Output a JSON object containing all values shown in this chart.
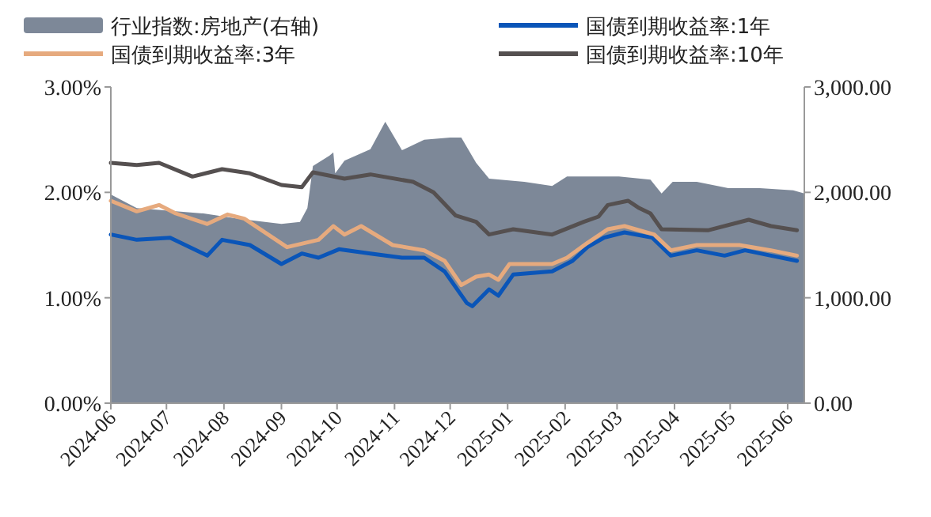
{
  "chart_data": {
    "type": "line",
    "legend": "top",
    "xlim": [
      "2024-06-01",
      "2025-06-10"
    ],
    "xticks": [
      "2024-06",
      "2024-07",
      "2024-08",
      "2024-09",
      "2024-10",
      "2024-11",
      "2024-12",
      "2025-01",
      "2025-02",
      "2025-03",
      "2025-04",
      "2025-05",
      "2025-06"
    ],
    "ylim": [
      0,
      3
    ],
    "yticks": [
      {
        "value": 0,
        "label": "0.00%"
      },
      {
        "value": 1,
        "label": "1.00%"
      },
      {
        "value": 2,
        "label": "2.00%"
      },
      {
        "value": 3,
        "label": "3.00%"
      }
    ],
    "y2lim": [
      0,
      3000
    ],
    "y2ticks": [
      {
        "value": 0,
        "label": "0.00"
      },
      {
        "value": 1000,
        "label": "1,000.00"
      },
      {
        "value": 2000,
        "label": "2,000.00"
      },
      {
        "value": 3000,
        "label": "3,000.00"
      }
    ],
    "series": [
      {
        "name": "行业指数:房地产(右轴)",
        "type": "area",
        "axis": "y2",
        "color": "#7d8898",
        "x": [
          "2024-06-01",
          "2024-06-15",
          "2024-07-21",
          "2024-08-09",
          "2024-09-01",
          "2024-09-11",
          "2024-09-15",
          "2024-09-18",
          "2024-09-27",
          "2024-09-29",
          "2024-09-30",
          "2024-10-05",
          "2024-10-19",
          "2024-10-27",
          "2024-10-31",
          "2024-11-05",
          "2024-11-17",
          "2024-12-01",
          "2024-12-07",
          "2024-12-15",
          "2024-12-22",
          "2025-01-10",
          "2025-01-25",
          "2025-02-02",
          "2025-03-02",
          "2025-03-19",
          "2025-03-25",
          "2025-03-31",
          "2025-04-13",
          "2025-04-30",
          "2025-05-17",
          "2025-06-04",
          "2025-06-10"
        ],
        "values": [
          1980,
          1850,
          1800,
          1750,
          1700,
          1720,
          1850,
          2250,
          2350,
          2380,
          2180,
          2300,
          2410,
          2670,
          2550,
          2400,
          2500,
          2520,
          2520,
          2280,
          2130,
          2100,
          2060,
          2150,
          2150,
          2120,
          1990,
          2100,
          2100,
          2040,
          2040,
          2020,
          1990
        ]
      },
      {
        "name": "国债到期收益率:1年",
        "color": "#0a55b8",
        "x": [
          "2024-06-01",
          "2024-06-15",
          "2024-07-03",
          "2024-07-23",
          "2024-07-31",
          "2024-08-15",
          "2024-09-01",
          "2024-09-12",
          "2024-09-21",
          "2024-10-02",
          "2024-10-19",
          "2024-11-05",
          "2024-11-17",
          "2024-11-28",
          "2024-12-10",
          "2024-12-13",
          "2024-12-22",
          "2024-12-27",
          "2025-01-04",
          "2025-01-25",
          "2025-02-05",
          "2025-02-13",
          "2025-02-22",
          "2025-03-05",
          "2025-03-20",
          "2025-03-30",
          "2025-04-13",
          "2025-04-28",
          "2025-05-09",
          "2025-05-23",
          "2025-06-06"
        ],
        "values": [
          1.6,
          1.55,
          1.57,
          1.4,
          1.55,
          1.5,
          1.32,
          1.42,
          1.38,
          1.46,
          1.42,
          1.38,
          1.38,
          1.25,
          0.95,
          0.92,
          1.08,
          1.02,
          1.22,
          1.25,
          1.35,
          1.48,
          1.57,
          1.62,
          1.57,
          1.4,
          1.45,
          1.4,
          1.45,
          1.4,
          1.35
        ]
      },
      {
        "name": "国债到期收益率:3年",
        "color": "#e6aa7e",
        "x": [
          "2024-06-01",
          "2024-06-15",
          "2024-06-27",
          "2024-07-06",
          "2024-07-23",
          "2024-08-03",
          "2024-08-12",
          "2024-09-04",
          "2024-09-21",
          "2024-09-29",
          "2024-10-05",
          "2024-10-14",
          "2024-10-31",
          "2024-11-17",
          "2024-11-28",
          "2024-12-07",
          "2024-12-15",
          "2024-12-22",
          "2024-12-27",
          "2025-01-02",
          "2025-01-25",
          "2025-02-02",
          "2025-02-13",
          "2025-02-24",
          "2025-03-05",
          "2025-03-21",
          "2025-03-30",
          "2025-04-13",
          "2025-05-06",
          "2025-05-23",
          "2025-06-06"
        ],
        "values": [
          1.92,
          1.82,
          1.88,
          1.8,
          1.7,
          1.79,
          1.75,
          1.48,
          1.55,
          1.68,
          1.6,
          1.68,
          1.5,
          1.45,
          1.35,
          1.12,
          1.2,
          1.22,
          1.17,
          1.32,
          1.32,
          1.38,
          1.52,
          1.65,
          1.68,
          1.6,
          1.45,
          1.5,
          1.5,
          1.45,
          1.4
        ]
      },
      {
        "name": "国债到期收益率:10年",
        "color": "#555050",
        "x": [
          "2024-06-01",
          "2024-06-15",
          "2024-06-27",
          "2024-07-15",
          "2024-07-31",
          "2024-08-15",
          "2024-09-01",
          "2024-09-12",
          "2024-09-18",
          "2024-10-05",
          "2024-10-19",
          "2024-11-11",
          "2024-11-22",
          "2024-12-04",
          "2024-12-15",
          "2024-12-22",
          "2025-01-04",
          "2025-01-25",
          "2025-02-11",
          "2025-02-19",
          "2025-02-24",
          "2025-03-07",
          "2025-03-13",
          "2025-03-19",
          "2025-03-25",
          "2025-04-19",
          "2025-05-11",
          "2025-05-23",
          "2025-06-06"
        ],
        "values": [
          2.28,
          2.26,
          2.28,
          2.15,
          2.22,
          2.18,
          2.07,
          2.05,
          2.19,
          2.13,
          2.17,
          2.1,
          2.0,
          1.78,
          1.72,
          1.6,
          1.65,
          1.6,
          1.72,
          1.77,
          1.88,
          1.92,
          1.85,
          1.8,
          1.65,
          1.64,
          1.74,
          1.68,
          1.64
        ]
      }
    ]
  }
}
